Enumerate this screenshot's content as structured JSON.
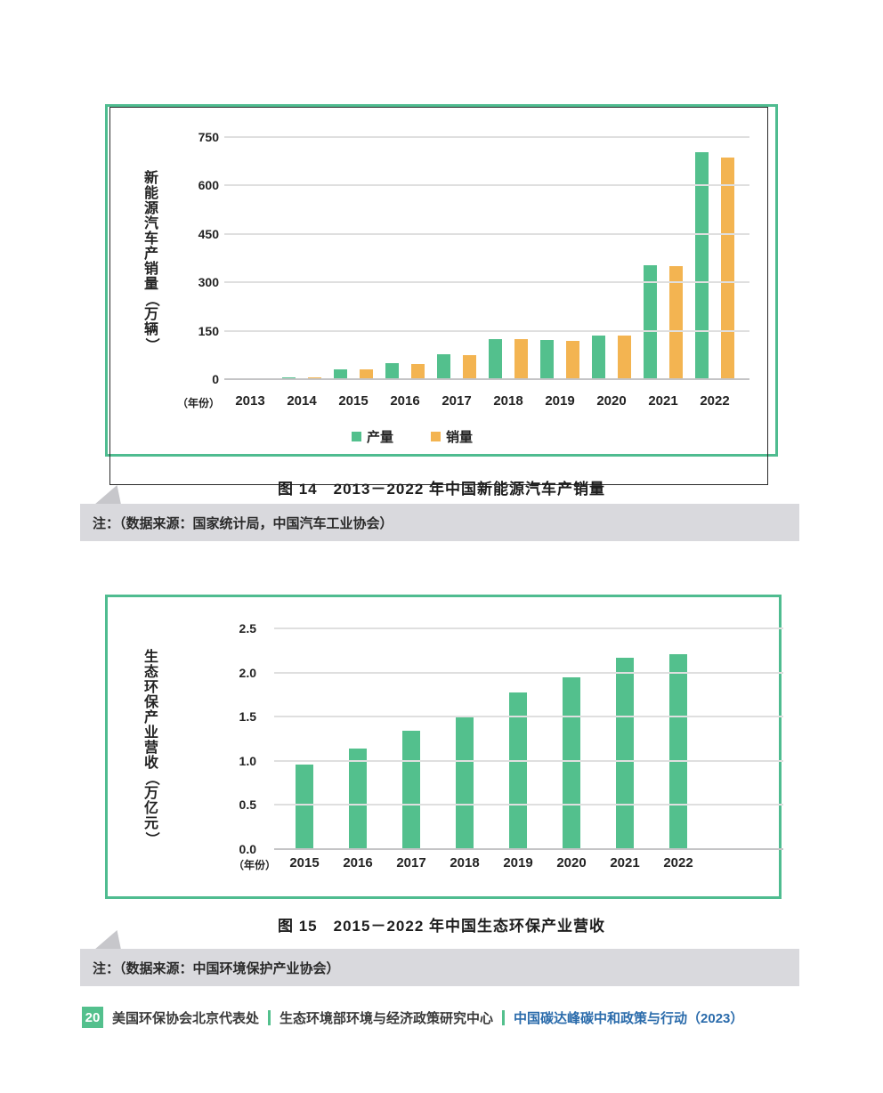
{
  "chart_data": [
    {
      "type": "bar",
      "title": "图 14　2013－2022 年中国新能源汽车产销量",
      "categories": [
        "2013",
        "2014",
        "2015",
        "2016",
        "2017",
        "2018",
        "2019",
        "2020",
        "2021",
        "2022"
      ],
      "series": [
        {
          "name": "产量",
          "color": "#53C08D",
          "values": [
            1.8,
            7.8,
            34.0,
            51.7,
            79.4,
            127.0,
            124.2,
            136.6,
            354.5,
            705.8
          ]
        },
        {
          "name": "销量",
          "color": "#F3B451",
          "values": [
            1.8,
            7.5,
            33.1,
            50.7,
            77.7,
            125.6,
            120.6,
            136.7,
            352.1,
            688.7
          ]
        }
      ],
      "ylabel": "新能源汽车产销量（万辆）",
      "xlabel": "（年份）",
      "ylim": [
        0,
        750
      ],
      "yticks": [
        0,
        150,
        300,
        450,
        600,
        750
      ],
      "ytick_labels": [
        "0",
        "150",
        "300",
        "450",
        "600",
        "750"
      ],
      "grid": true,
      "legend_position": "bottom"
    },
    {
      "type": "bar",
      "title": "图 15　2015－2022 年中国生态环保产业营收",
      "categories": [
        "2015",
        "2016",
        "2017",
        "2018",
        "2019",
        "2020",
        "2021",
        "2022"
      ],
      "values": [
        0.97,
        1.15,
        1.35,
        1.5,
        1.78,
        1.96,
        2.18,
        2.22
      ],
      "bar_color": "#53C08D",
      "ylabel": "生态环保产业营收（万亿元）",
      "xlabel": "（年份）",
      "ylim": [
        0,
        2.5
      ],
      "yticks": [
        0,
        0.5,
        1.0,
        1.5,
        2.0,
        2.5
      ],
      "ytick_labels": [
        "0.0",
        "0.5",
        "1.0",
        "1.5",
        "2.0",
        "2.5"
      ],
      "grid": true,
      "legend_position": "none"
    }
  ],
  "notes": {
    "figure14": "注：（数据来源：国家统计局，中国汽车工业协会）",
    "figure15": "注：（数据来源：中国环境保护产业协会）"
  },
  "footer": {
    "page_number": "20",
    "org1": "美国环保协会北京代表处",
    "org2": "生态环境部环境与经济政策研究中心",
    "report": "中国碳达峰碳中和政策与行动（2023）"
  },
  "colors": {
    "bar_green": "#53C08D",
    "bar_orange": "#F3B451",
    "frame_green": "#4FBC90",
    "note_gray": "#D9D9DD",
    "footer_green": "#53C08D",
    "footer_blue": "#2A6BAB"
  }
}
